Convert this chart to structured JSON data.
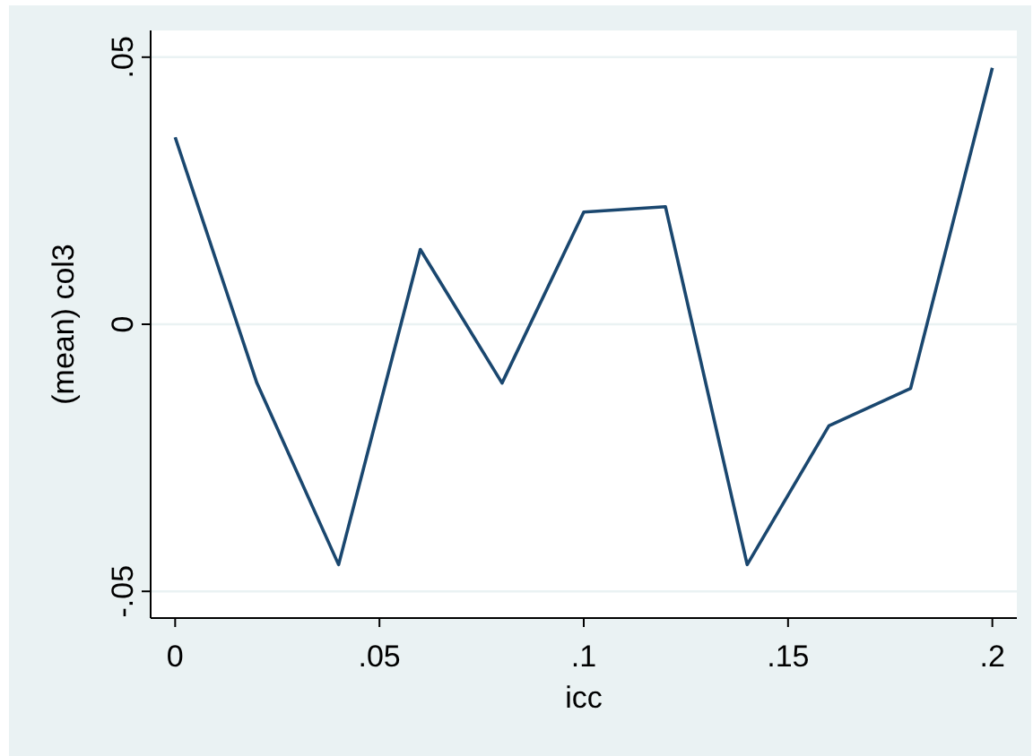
{
  "chart_data": {
    "type": "line",
    "xlabel": "icc",
    "ylabel": "(mean) col3",
    "x": [
      0,
      0.02,
      0.04,
      0.06,
      0.08,
      0.1,
      0.12,
      0.14,
      0.16,
      0.18,
      0.2
    ],
    "series": [
      {
        "color": "#1a476f",
        "values": [
          0.035,
          -0.011,
          -0.045,
          0.014,
          -0.011,
          0.021,
          0.022,
          -0.045,
          -0.019,
          -0.012,
          0.048
        ]
      }
    ],
    "xlim": [
      -0.006,
      0.206
    ],
    "ylim": [
      -0.055,
      0.055
    ],
    "xticks": [
      {
        "value": 0,
        "label": "0"
      },
      {
        "value": 0.05,
        "label": ".05"
      },
      {
        "value": 0.1,
        "label": ".1"
      },
      {
        "value": 0.15,
        "label": ".15"
      },
      {
        "value": 0.2,
        "label": ".2"
      }
    ],
    "yticks": [
      {
        "value": -0.05,
        "label": "-.05"
      },
      {
        "value": 0,
        "label": "0"
      },
      {
        "value": 0.05,
        "label": ".05"
      }
    ],
    "grid": "y",
    "marker": "none",
    "line_style": "solid"
  }
}
